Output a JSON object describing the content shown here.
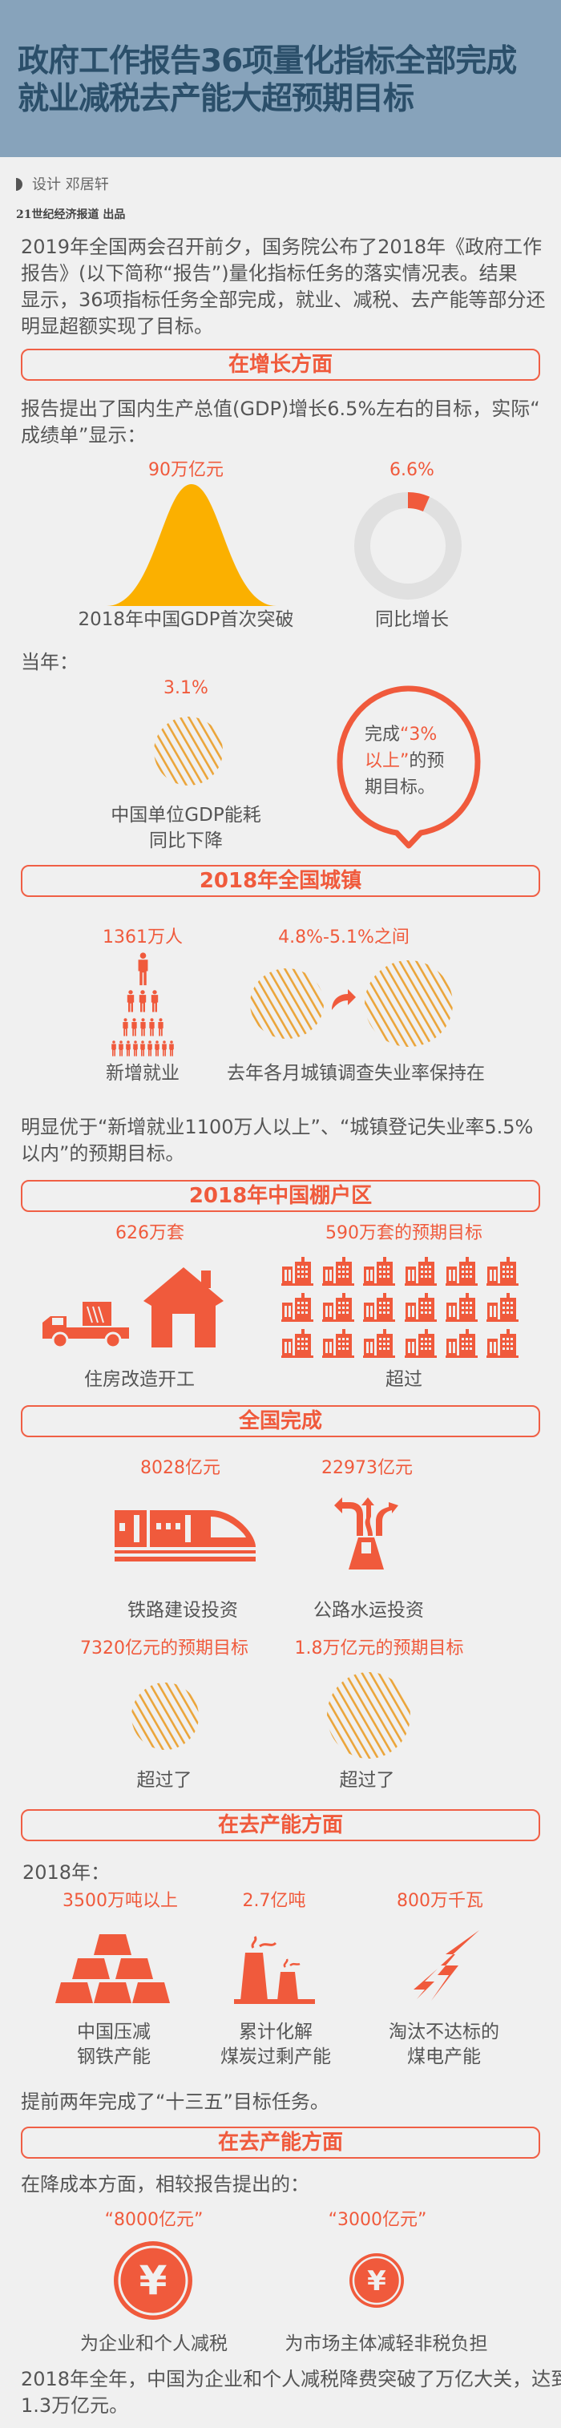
{
  "colors": {
    "accent": "#f05a3c",
    "hatch": "#eba53a",
    "bell": "#fbb000",
    "header_bg": "#87a3bb",
    "title": "#2b4f6a",
    "donut_track": "#e0e0e0"
  },
  "header": {
    "title_line1": "政府工作报告36项量化指标全部完成",
    "title_line2": "就业减税去产能大超预期目标"
  },
  "byline": {
    "designer": "设计  邓居轩",
    "publisher": "21世纪经济报道  出品"
  },
  "intro": {
    "lines": [
      "2019年全国两会召开前夕，国务院公布了2018年《政府工作",
      "报告》(以下简称“报告”)量化指标任务的落实情况表。结果",
      "显示，36项指标任务全部完成，就业、减税、去产能等部分还",
      "明显超额实现了目标。"
    ]
  },
  "growth": {
    "section_title": "在增长方面",
    "lines": [
      "报告提出了国内生产总值(GDP)增长6.5%左右的目标，实际“",
      "成绩单”显示："
    ],
    "gdp": {
      "value": "90万亿元",
      "caption": "2018年中国GDP首次突破"
    },
    "growth_rate": {
      "value": "6.6%",
      "percent": 6.6,
      "caption": "同比增长"
    },
    "that_year": "当年：",
    "energy": {
      "value": "3.1%",
      "caption_line1": "中国单位GDP能耗",
      "caption_line2": "同比下降"
    },
    "bubble": {
      "pre": "完成",
      "highlight_1": "“3%",
      "highlight_2": "以上”",
      "post_1": "的预",
      "post_2": "期目标。"
    }
  },
  "urban": {
    "section_title": "2018年全国城镇",
    "jobs": {
      "value": "1361万人",
      "caption": "新增就业"
    },
    "unemployment": {
      "value": "4.8%-5.1%之间",
      "caption": "去年各月城镇调查失业率保持在"
    },
    "lines": [
      "明显优于“新增就业1100万人以上”、“城镇登记失业率5.5%",
      "以内”的预期目标。"
    ]
  },
  "shanty": {
    "section_title": "2018年中国棚户区",
    "started": {
      "value": "626万套",
      "caption": "住房改造开工"
    },
    "target": {
      "value": "590万套的预期目标",
      "caption": "超过"
    }
  },
  "national": {
    "section_title": "全国完成",
    "rail": {
      "value": "8028亿元",
      "caption": "铁路建设投资",
      "target": "7320亿元的预期目标",
      "result": "超过了"
    },
    "road": {
      "value": "22973亿元",
      "caption": "公路水运投资",
      "target": "1.8万亿元的预期目标",
      "result": "超过了"
    }
  },
  "capacity": {
    "section_title": "在去产能方面",
    "year_label": "2018年：",
    "items": [
      {
        "value": "3500万吨以上",
        "caption_line1": "中国压减",
        "caption_line2": "钢铁产能",
        "icon": "gold-bars-icon"
      },
      {
        "value": "2.7亿吨",
        "caption_line1": "累计化解",
        "caption_line2": "煤炭过剩产能",
        "icon": "factory-icon"
      },
      {
        "value": "800万千瓦",
        "caption_line1": "淘汰不达标的",
        "caption_line2": "煤电产能",
        "icon": "lightning-icon"
      }
    ],
    "conclusion": "提前两年完成了“十三五”目标任务。"
  },
  "cost": {
    "section_title": "在去产能方面",
    "intro": "在降成本方面，相较报告提出的：",
    "tax": {
      "value": "“8000亿元”",
      "caption": "为企业和个人减税",
      "icon_symbol": "¥"
    },
    "fees": {
      "value": "“3000亿元”",
      "caption": "为市场主体减轻非税负担",
      "icon_symbol": "¥"
    },
    "lines": [
      "2018年全年，中国为企业和个人减税降费突破了万亿大关，达到",
      "1.3万亿元。"
    ]
  }
}
